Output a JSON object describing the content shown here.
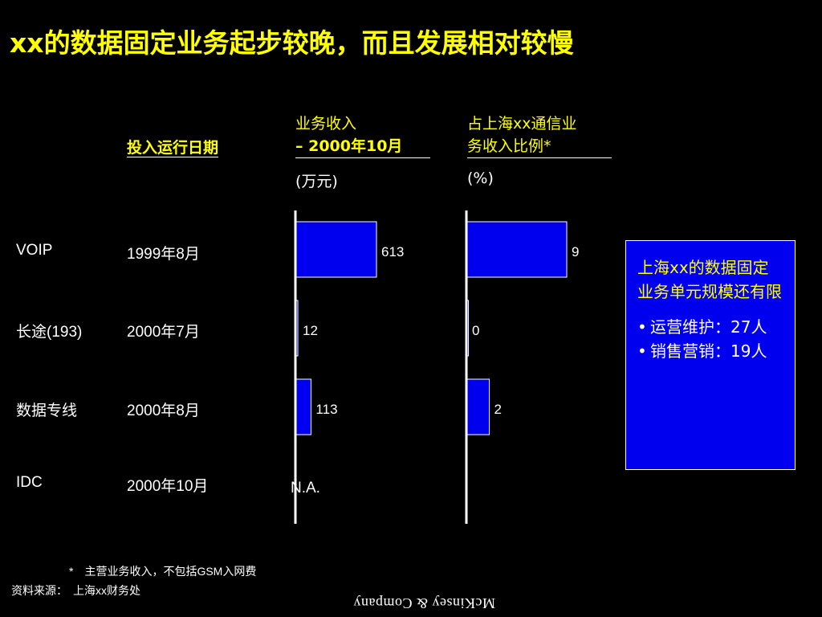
{
  "title": "xx的数据固定业务起步较晚，而且发展相对较慢",
  "columns": {
    "launch_date": {
      "header": "投入运行日期"
    },
    "revenue": {
      "header_line1": "业务收入",
      "header_line2": "– 2000年10月",
      "unit": "(万元)"
    },
    "share": {
      "header_line1": "占上海xx通信业",
      "header_line2": "务收入比例*",
      "unit": "(%)"
    }
  },
  "chart_data": [
    {
      "type": "bar",
      "orientation": "horizontal",
      "title": "业务收入 – 2000年10月",
      "unit": "(万元)",
      "categories": [
        "VOIP",
        "长途(193)",
        "数据专线",
        "IDC"
      ],
      "values": [
        613,
        12,
        113,
        null
      ],
      "value_labels": [
        "613",
        "12",
        "113",
        "N.A."
      ],
      "bar_color": "#0000ee"
    },
    {
      "type": "bar",
      "orientation": "horizontal",
      "title": "占上海xx通信业务收入比例*",
      "unit": "(%)",
      "categories": [
        "VOIP",
        "长途(193)",
        "数据专线",
        "IDC"
      ],
      "values": [
        9,
        0,
        2,
        null
      ],
      "value_labels": [
        "9",
        "0",
        "2",
        ""
      ],
      "bar_color": "#0000ee"
    }
  ],
  "rows": [
    {
      "name": "VOIP",
      "date": "1999年8月"
    },
    {
      "name": "长途(193)",
      "date": "2000年7月"
    },
    {
      "name": "数据专线",
      "date": "2000年8月"
    },
    {
      "name": "IDC",
      "date": "2000年10月"
    }
  ],
  "callout": {
    "title": "上海xx的数据固定业务单元规模还有限",
    "bullets": [
      "运营维护：27人",
      "销售营销：19人"
    ],
    "bullet_symbol": "•"
  },
  "footnote": "*　主营业务收入，不包括GSM入网费",
  "source": "资料来源：　上海xx财务处",
  "logo_text": "McKinsey & Company",
  "colors": {
    "background": "#000000",
    "title": "#ffff00",
    "bar": "#0000ee",
    "text": "#ffffff"
  }
}
